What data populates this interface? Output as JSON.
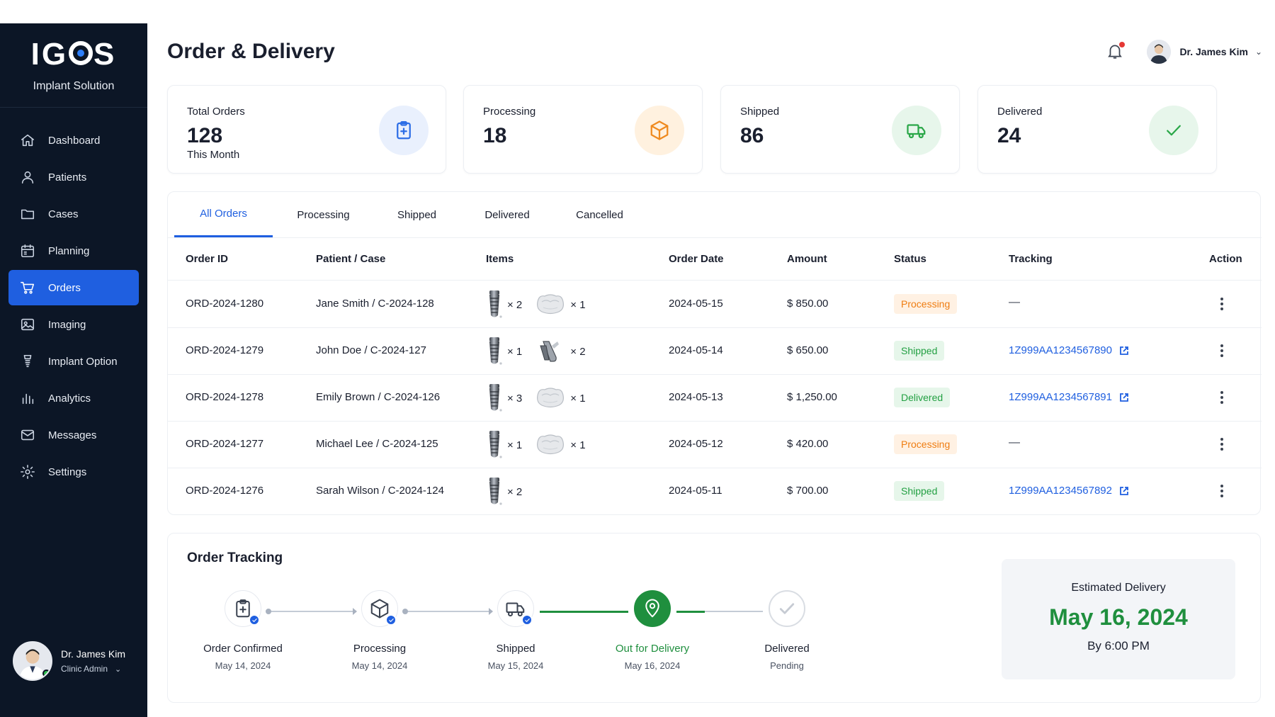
{
  "brand": {
    "logo": "IGOS",
    "subtitle": "Implant Solution"
  },
  "sidebar": {
    "items": [
      {
        "label": "Dashboard",
        "icon": "home-icon"
      },
      {
        "label": "Patients",
        "icon": "user-icon"
      },
      {
        "label": "Cases",
        "icon": "folder-icon"
      },
      {
        "label": "Planning",
        "icon": "calendar-icon"
      },
      {
        "label": "Orders",
        "icon": "cart-icon",
        "active": true
      },
      {
        "label": "Imaging",
        "icon": "image-icon"
      },
      {
        "label": "Implant Option",
        "icon": "implant-icon"
      },
      {
        "label": "Analytics",
        "icon": "bar-chart-icon"
      },
      {
        "label": "Messages",
        "icon": "mail-icon"
      },
      {
        "label": "Settings",
        "icon": "gear-icon"
      }
    ],
    "user": {
      "name": "Dr. James Kim",
      "role": "Clinic Admin"
    }
  },
  "header": {
    "title": "Order & Delivery",
    "user_name": "Dr. James Kim"
  },
  "stats": [
    {
      "label": "Total Orders",
      "value": "128",
      "sub": "This Month",
      "icon": "clipboard-icon",
      "color": "#2d6ee6",
      "bg": "#e9f0fd"
    },
    {
      "label": "Processing",
      "value": "18",
      "sub": "",
      "icon": "box-icon",
      "color": "#ef8a1f",
      "bg": "#fff1df"
    },
    {
      "label": "Shipped",
      "value": "86",
      "sub": "",
      "icon": "truck-icon",
      "color": "#2aa748",
      "bg": "#e7f6eb"
    },
    {
      "label": "Delivered",
      "value": "24",
      "sub": "",
      "icon": "check-icon",
      "color": "#2aa748",
      "bg": "#e7f6eb"
    }
  ],
  "tabs": [
    "All Orders",
    "Processing",
    "Shipped",
    "Delivered",
    "Cancelled"
  ],
  "table": {
    "columns": [
      "Order ID",
      "Patient / Case",
      "Items",
      "Order Date",
      "Amount",
      "Status",
      "Tracking",
      "Action"
    ],
    "rows": [
      {
        "id": "ORD-2024-1280",
        "patient": "Jane Smith / C-2024-128",
        "items": [
          {
            "type": "implant",
            "qty": "× 2"
          },
          {
            "type": "crown",
            "qty": "× 1"
          }
        ],
        "date": "2024-05-15",
        "amount": "$ 850.00",
        "status": "Processing",
        "tracking": "—"
      },
      {
        "id": "ORD-2024-1279",
        "patient": "John Doe / C-2024-127",
        "items": [
          {
            "type": "implant",
            "qty": "× 1"
          },
          {
            "type": "abutment",
            "qty": "× 2"
          }
        ],
        "date": "2024-05-14",
        "amount": "$ 650.00",
        "status": "Shipped",
        "tracking": "1Z999AA1234567890"
      },
      {
        "id": "ORD-2024-1278",
        "patient": "Emily Brown / C-2024-126",
        "items": [
          {
            "type": "implant",
            "qty": "× 3"
          },
          {
            "type": "crown",
            "qty": "× 1"
          }
        ],
        "date": "2024-05-13",
        "amount": "$ 1,250.00",
        "status": "Delivered",
        "tracking": "1Z999AA1234567891"
      },
      {
        "id": "ORD-2024-1277",
        "patient": "Michael Lee / C-2024-125",
        "items": [
          {
            "type": "implant",
            "qty": "× 1"
          },
          {
            "type": "crown",
            "qty": "× 1"
          }
        ],
        "date": "2024-05-12",
        "amount": "$ 420.00",
        "status": "Processing",
        "tracking": "—"
      },
      {
        "id": "ORD-2024-1276",
        "patient": "Sarah Wilson / C-2024-124",
        "items": [
          {
            "type": "implant",
            "qty": "× 2"
          }
        ],
        "date": "2024-05-11",
        "amount": "$ 700.00",
        "status": "Shipped",
        "tracking": "1Z999AA1234567892"
      }
    ]
  },
  "tracking": {
    "title": "Order Tracking",
    "steps": [
      {
        "name": "Order Confirmed",
        "date": "May 14, 2024",
        "state": "done",
        "icon": "clipboard-icon"
      },
      {
        "name": "Processing",
        "date": "May 14, 2024",
        "state": "done",
        "icon": "box-icon"
      },
      {
        "name": "Shipped",
        "date": "May 15, 2024",
        "state": "done",
        "icon": "truck-icon"
      },
      {
        "name": "Out for Delivery",
        "date": "May 16, 2024",
        "state": "current",
        "icon": "location-pin-icon"
      },
      {
        "name": "Delivered",
        "date": "Pending",
        "state": "pending",
        "icon": "check-circle-icon"
      }
    ],
    "eta": {
      "label": "Estimated Delivery",
      "date": "May 16, 2024",
      "time": "By 6:00 PM"
    }
  },
  "colors": {
    "sidebar_bg": "#0c1626",
    "accent": "#1f5fe0",
    "success": "#1f8f3e",
    "warning": "#ef7d12"
  }
}
